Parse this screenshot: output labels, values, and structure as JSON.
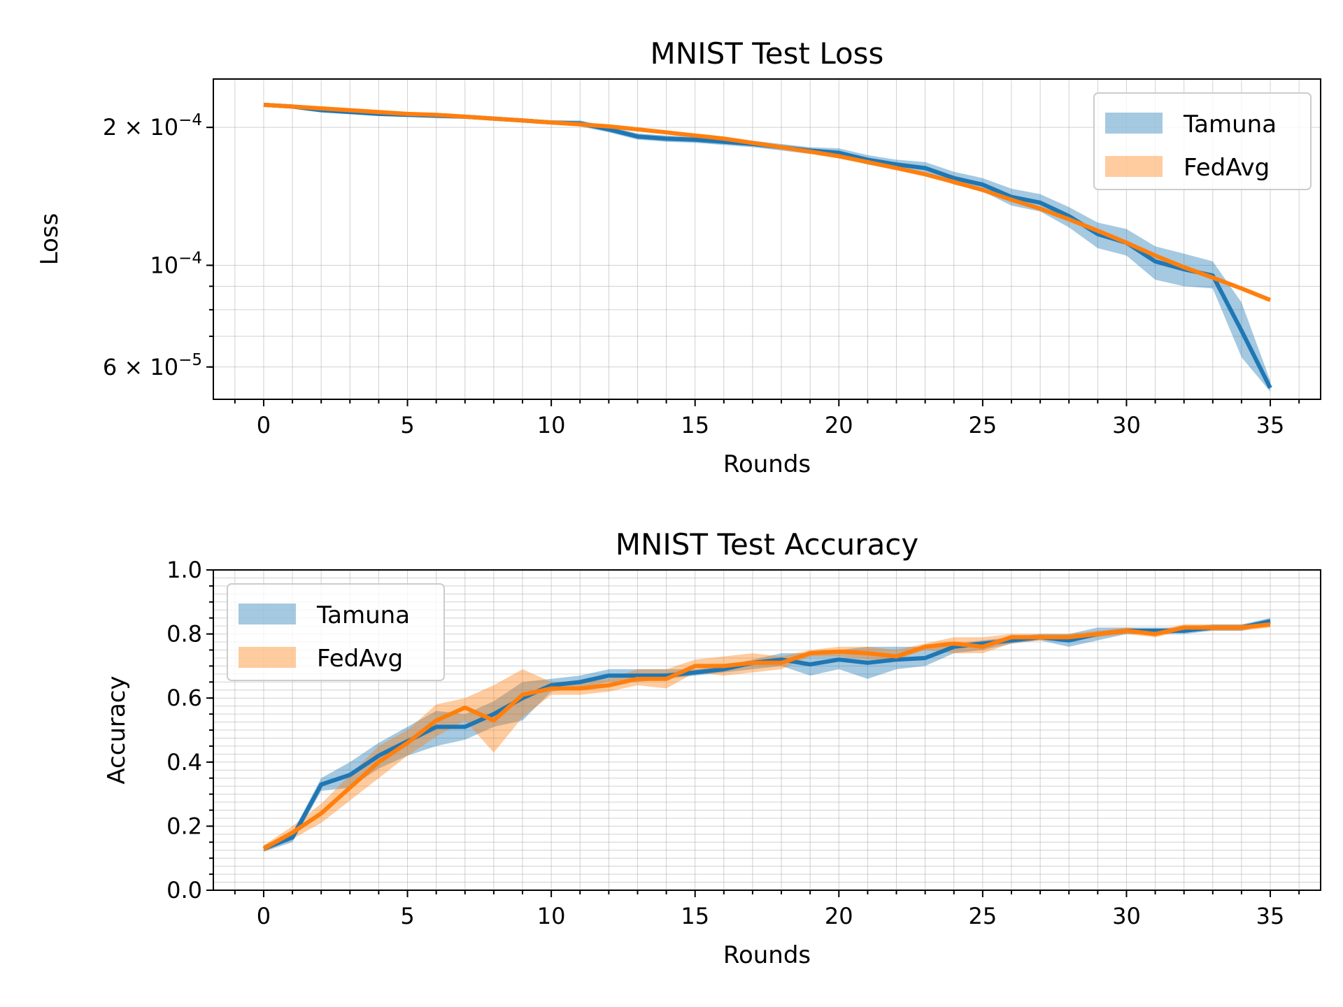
{
  "chart_data": [
    {
      "type": "line",
      "title": "MNIST Test Loss",
      "xlabel": "Rounds",
      "ylabel": "Loss",
      "yscale": "log",
      "xlim": [
        -1.75,
        36.75
      ],
      "ylim": [
        5.1e-05,
        0.000255
      ],
      "x": [
        0,
        1,
        2,
        3,
        4,
        5,
        6,
        7,
        8,
        9,
        10,
        11,
        12,
        13,
        14,
        15,
        16,
        17,
        18,
        19,
        20,
        21,
        22,
        23,
        24,
        25,
        26,
        27,
        28,
        29,
        30,
        31,
        32,
        33,
        34,
        35
      ],
      "x_ticks": [
        "0",
        "5",
        "10",
        "15",
        "20",
        "25",
        "30",
        "35"
      ],
      "x_tick_values": [
        0,
        5,
        10,
        15,
        20,
        25,
        30,
        35
      ],
      "y_ticks": [
        {
          "label": "2 × 10",
          "exp": "−4",
          "value": 0.0002
        },
        {
          "label": "10",
          "exp": "−4",
          "value": 0.0001
        },
        {
          "label": "6 × 10",
          "exp": "−5",
          "value": 6e-05
        }
      ],
      "grid": true,
      "legend": "top-right",
      "series": [
        {
          "name": "Tamuna",
          "color": "#1f77b4",
          "values": [
            0.000224,
            0.000222,
            0.000218,
            0.000216,
            0.000214,
            0.000213,
            0.000212,
            0.000211,
            0.000209,
            0.000207,
            0.000205,
            0.000204,
            0.000198,
            0.000191,
            0.000189,
            0.000188,
            0.000186,
            0.000184,
            0.000181,
            0.000178,
            0.000176,
            0.00017,
            0.000166,
            0.000163,
            0.000155,
            0.00015,
            0.000141,
            0.000137,
            0.000128,
            0.000117,
            0.000112,
            0.000102,
            9.8e-05,
            9.5e-05,
            7.2e-05,
            5.4e-05
          ],
          "lower": [
            0.000223,
            0.000221,
            0.000216,
            0.000214,
            0.000212,
            0.000211,
            0.00021,
            0.000209,
            0.000207,
            0.000205,
            0.000203,
            0.000201,
            0.000195,
            0.000188,
            0.000186,
            0.000185,
            0.000183,
            0.000181,
            0.000178,
            0.000175,
            0.000172,
            0.000166,
            0.000162,
            0.000159,
            0.00015,
            0.000145,
            0.000135,
            0.000131,
            0.000121,
            0.000109,
            0.000105,
            9.3e-05,
            9e-05,
            8.9e-05,
            6.3e-05,
            5.3e-05
          ],
          "upper": [
            0.000225,
            0.000223,
            0.00022,
            0.000218,
            0.000216,
            0.000215,
            0.000214,
            0.000213,
            0.000211,
            0.000209,
            0.000207,
            0.000207,
            0.000201,
            0.000194,
            0.000192,
            0.000191,
            0.000189,
            0.000187,
            0.000184,
            0.000181,
            0.00018,
            0.000174,
            0.00017,
            0.000168,
            0.00016,
            0.000155,
            0.000147,
            0.000143,
            0.000134,
            0.000124,
            0.00012,
            0.00011,
            0.000106,
            0.000102,
            8.3e-05,
            5.6e-05
          ]
        },
        {
          "name": "FedAvg",
          "color": "#ff7f0e",
          "values": [
            0.000224,
            0.000222,
            0.00022,
            0.000218,
            0.000216,
            0.000214,
            0.000213,
            0.000211,
            0.000209,
            0.000207,
            0.000205,
            0.000203,
            0.000201,
            0.000198,
            0.000195,
            0.000192,
            0.000189,
            0.000185,
            0.000181,
            0.000177,
            0.000173,
            0.000168,
            0.000163,
            0.000158,
            0.000152,
            0.000146,
            0.000139,
            0.000133,
            0.000126,
            0.000119,
            0.000112,
            0.000105,
            9.9e-05,
            9.4e-05,
            8.9e-05,
            8.4e-05
          ],
          "lower": [
            0.000224,
            0.000222,
            0.00022,
            0.000218,
            0.000216,
            0.000214,
            0.000213,
            0.000211,
            0.000209,
            0.000207,
            0.000205,
            0.000203,
            0.000201,
            0.000198,
            0.000195,
            0.000192,
            0.000189,
            0.000185,
            0.000181,
            0.000177,
            0.000173,
            0.000168,
            0.000163,
            0.000158,
            0.000152,
            0.000146,
            0.000139,
            0.000133,
            0.000126,
            0.000119,
            0.000112,
            0.000105,
            9.9e-05,
            9.4e-05,
            8.9e-05,
            8.4e-05
          ],
          "upper": [
            0.000224,
            0.000222,
            0.00022,
            0.000218,
            0.000216,
            0.000214,
            0.000213,
            0.000211,
            0.000209,
            0.000207,
            0.000205,
            0.000203,
            0.000201,
            0.000198,
            0.000195,
            0.000192,
            0.000189,
            0.000185,
            0.000181,
            0.000177,
            0.000173,
            0.000168,
            0.000163,
            0.000158,
            0.000152,
            0.000146,
            0.000139,
            0.000133,
            0.000126,
            0.000119,
            0.000112,
            0.000105,
            9.9e-05,
            9.4e-05,
            8.9e-05,
            8.4e-05
          ]
        }
      ]
    },
    {
      "type": "line",
      "title": "MNIST Test Accuracy",
      "xlabel": "Rounds",
      "ylabel": "Accuracy",
      "yscale": "linear",
      "xlim": [
        -1.75,
        36.75
      ],
      "ylim": [
        0.0,
        1.0
      ],
      "x": [
        0,
        1,
        2,
        3,
        4,
        5,
        6,
        7,
        8,
        9,
        10,
        11,
        12,
        13,
        14,
        15,
        16,
        17,
        18,
        19,
        20,
        21,
        22,
        23,
        24,
        25,
        26,
        27,
        28,
        29,
        30,
        31,
        32,
        33,
        34,
        35
      ],
      "x_ticks": [
        "0",
        "5",
        "10",
        "15",
        "20",
        "25",
        "30",
        "35"
      ],
      "x_tick_values": [
        0,
        5,
        10,
        15,
        20,
        25,
        30,
        35
      ],
      "y_ticks": [
        {
          "label": "0.0",
          "value": 0.0
        },
        {
          "label": "0.2",
          "value": 0.2
        },
        {
          "label": "0.4",
          "value": 0.4
        },
        {
          "label": "0.6",
          "value": 0.6
        },
        {
          "label": "0.8",
          "value": 0.8
        },
        {
          "label": "1.0",
          "value": 1.0
        }
      ],
      "grid": true,
      "legend": "top-left",
      "series": [
        {
          "name": "Tamuna",
          "color": "#1f77b4",
          "values": [
            0.13,
            0.165,
            0.33,
            0.36,
            0.42,
            0.465,
            0.51,
            0.51,
            0.55,
            0.6,
            0.64,
            0.65,
            0.67,
            0.67,
            0.67,
            0.68,
            0.69,
            0.71,
            0.72,
            0.705,
            0.72,
            0.71,
            0.72,
            0.725,
            0.76,
            0.77,
            0.78,
            0.79,
            0.78,
            0.8,
            0.81,
            0.81,
            0.81,
            0.82,
            0.82,
            0.84
          ],
          "lower": [
            0.12,
            0.15,
            0.31,
            0.32,
            0.38,
            0.42,
            0.45,
            0.47,
            0.51,
            0.53,
            0.62,
            0.63,
            0.65,
            0.65,
            0.66,
            0.67,
            0.68,
            0.69,
            0.7,
            0.67,
            0.69,
            0.66,
            0.69,
            0.7,
            0.74,
            0.75,
            0.77,
            0.78,
            0.76,
            0.78,
            0.8,
            0.8,
            0.8,
            0.81,
            0.81,
            0.83
          ],
          "upper": [
            0.14,
            0.18,
            0.35,
            0.4,
            0.46,
            0.51,
            0.56,
            0.55,
            0.59,
            0.65,
            0.66,
            0.67,
            0.69,
            0.69,
            0.69,
            0.69,
            0.7,
            0.72,
            0.74,
            0.74,
            0.75,
            0.76,
            0.76,
            0.76,
            0.77,
            0.78,
            0.79,
            0.8,
            0.8,
            0.82,
            0.82,
            0.82,
            0.82,
            0.83,
            0.83,
            0.85
          ]
        },
        {
          "name": "FedAvg",
          "color": "#ff7f0e",
          "values": [
            0.13,
            0.18,
            0.24,
            0.32,
            0.4,
            0.46,
            0.53,
            0.57,
            0.53,
            0.61,
            0.63,
            0.63,
            0.64,
            0.66,
            0.66,
            0.7,
            0.7,
            0.71,
            0.71,
            0.74,
            0.745,
            0.74,
            0.73,
            0.76,
            0.77,
            0.76,
            0.79,
            0.79,
            0.79,
            0.8,
            0.81,
            0.8,
            0.82,
            0.82,
            0.82,
            0.83
          ],
          "lower": [
            0.12,
            0.16,
            0.21,
            0.28,
            0.35,
            0.42,
            0.48,
            0.53,
            0.43,
            0.54,
            0.61,
            0.61,
            0.62,
            0.64,
            0.63,
            0.68,
            0.67,
            0.68,
            0.69,
            0.73,
            0.73,
            0.72,
            0.72,
            0.75,
            0.74,
            0.74,
            0.77,
            0.78,
            0.78,
            0.79,
            0.8,
            0.79,
            0.81,
            0.81,
            0.81,
            0.82
          ],
          "upper": [
            0.14,
            0.2,
            0.27,
            0.36,
            0.45,
            0.5,
            0.58,
            0.6,
            0.64,
            0.69,
            0.65,
            0.65,
            0.66,
            0.69,
            0.69,
            0.72,
            0.73,
            0.74,
            0.73,
            0.75,
            0.76,
            0.76,
            0.75,
            0.77,
            0.79,
            0.79,
            0.8,
            0.8,
            0.8,
            0.81,
            0.82,
            0.81,
            0.83,
            0.83,
            0.83,
            0.84
          ]
        }
      ]
    }
  ]
}
